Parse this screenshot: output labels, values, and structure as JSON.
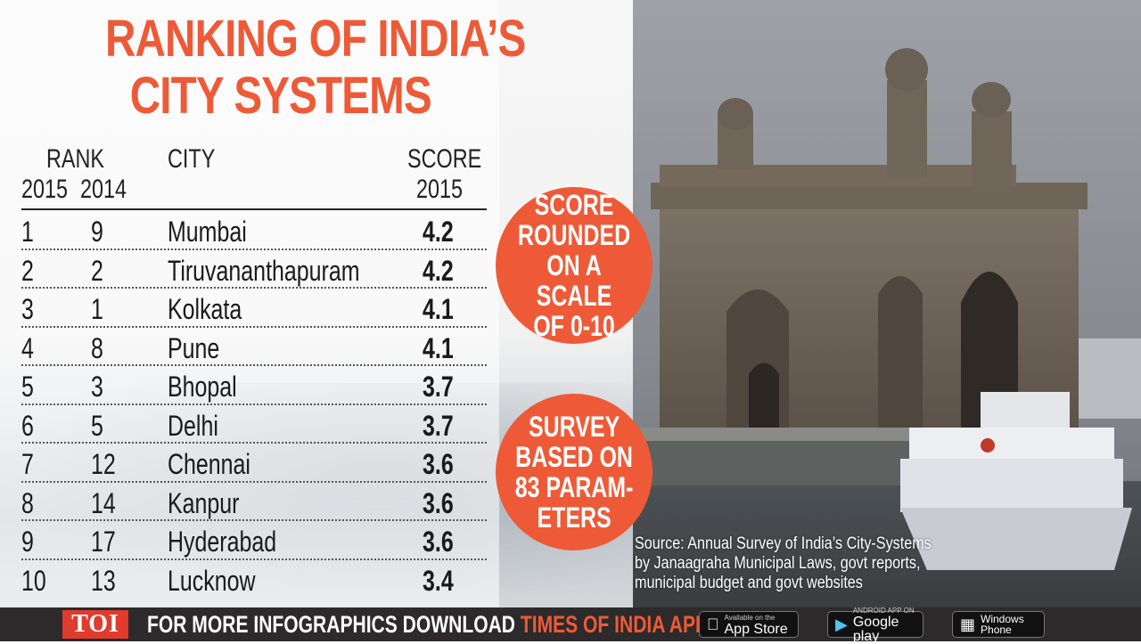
{
  "title_lines": [
    "RANKING OF INDIA’S",
    "CITY SYSTEMS"
  ],
  "headers": {
    "rank": "RANK",
    "rank_2015": "2015",
    "rank_2014": "2014",
    "city": "CITY",
    "score": "SCORE",
    "score_year": "2015"
  },
  "chart_data": {
    "type": "table",
    "title": "RANKING OF INDIA’S CITY SYSTEMS",
    "columns": [
      "RANK 2015",
      "RANK 2014",
      "CITY",
      "SCORE 2015"
    ],
    "rows": [
      {
        "rank_2015": "1",
        "rank_2014": "9",
        "city": "Mumbai",
        "score": "4.2"
      },
      {
        "rank_2015": "2",
        "rank_2014": "2",
        "city": "Tiruvananthapuram",
        "score": "4.2"
      },
      {
        "rank_2015": "3",
        "rank_2014": "1",
        "city": "Kolkata",
        "score": "4.1"
      },
      {
        "rank_2015": "4",
        "rank_2014": "8",
        "city": "Pune",
        "score": "4.1"
      },
      {
        "rank_2015": "5",
        "rank_2014": "3",
        "city": "Bhopal",
        "score": "3.7"
      },
      {
        "rank_2015": "6",
        "rank_2014": "5",
        "city": "Delhi",
        "score": "3.7"
      },
      {
        "rank_2015": "7",
        "rank_2014": "12",
        "city": "Chennai",
        "score": "3.6"
      },
      {
        "rank_2015": "8",
        "rank_2014": "14",
        "city": "Kanpur",
        "score": "3.6"
      },
      {
        "rank_2015": "9",
        "rank_2014": "17",
        "city": "Hyderabad",
        "score": "3.6"
      },
      {
        "rank_2015": "10",
        "rank_2014": "13",
        "city": "Lucknow",
        "score": "3.4"
      }
    ]
  },
  "badges": [
    "SCORE\nROUNDED\nON A SCALE\nOF 0-10",
    "SURVEY\nBASED ON\n83 PARAM-\nETERS"
  ],
  "source_lines": [
    "Source: Annual Survey of India’s City-Systems",
    "by Janaagraha Municipal Laws, govt reports,",
    "municipal budget and govt websites"
  ],
  "footer": {
    "logo": "TOI",
    "text_part1": "FOR MORE  INFOGRAPHICS DOWNLOAD ",
    "text_highlight": "TIMES OF INDIA APP",
    "stores": {
      "apple_small": "Available on the",
      "apple_big": "App Store",
      "google_small": "ANDROID APP ON",
      "google_big": "Google play",
      "windows_small": "Windows",
      "windows_big": "Phone"
    }
  },
  "colors": {
    "accent": "#ee5a37",
    "footer_bg": "#2c2a2b",
    "toi_red": "#e03b2c"
  },
  "icons": [
    "apple-icon",
    "google-play-icon",
    "windows-icon"
  ]
}
